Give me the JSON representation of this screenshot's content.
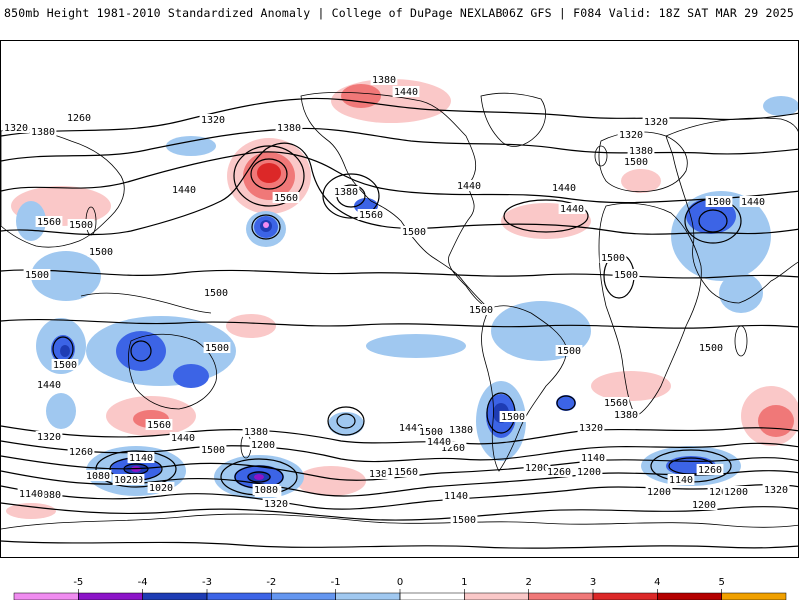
{
  "header": {
    "title_left": "850mb Height 1981-2010 Standardized Anomaly | College of DuPage NEXLAB",
    "title_right": "06Z GFS | F084 Valid: 18Z SAT MAR 29 2025"
  },
  "map": {
    "projection": "global cylindrical",
    "contour_labels": [
      "1380",
      "1440",
      "1320",
      "1380",
      "1260",
      "1320",
      "1380",
      "1320",
      "1320",
      "1380",
      "1500",
      "1440",
      "1560",
      "1380",
      "1440",
      "1440",
      "1440",
      "1500",
      "1560",
      "1440",
      "1500",
      "1560",
      "1500",
      "1500",
      "1500",
      "1500",
      "1500",
      "1500",
      "1500",
      "1500",
      "1500",
      "1500",
      "1500",
      "1560",
      "1560",
      "1440",
      "1380",
      "1440",
      "1320",
      "1380",
      "1500",
      "1440",
      "1500",
      "1320",
      "1200",
      "1140",
      "1260",
      "1200",
      "1140",
      "1200",
      "1080",
      "1020",
      "1080",
      "1320",
      "1080",
      "1140",
      "1200",
      "1260",
      "1140",
      "1200",
      "1260",
      "1020",
      "1080",
      "1200",
      "1320",
      "1380",
      "1140",
      "1200",
      "1260",
      "1440",
      "1500",
      "1560",
      "1380",
      "1500",
      "1200",
      "1260",
      "1500"
    ]
  },
  "colorbar": {
    "ticks": [
      "-5",
      "-4",
      "-3",
      "-2",
      "-1",
      "0",
      "1",
      "2",
      "3",
      "4",
      "5"
    ],
    "colors": [
      "#f08cf0",
      "#8c14c8",
      "#1e3cb4",
      "#3c64e6",
      "#a0c8f0",
      "#ffffff",
      "#fac8c8",
      "#f07878",
      "#dc2828",
      "#f0a000",
      "#f0c832"
    ]
  }
}
